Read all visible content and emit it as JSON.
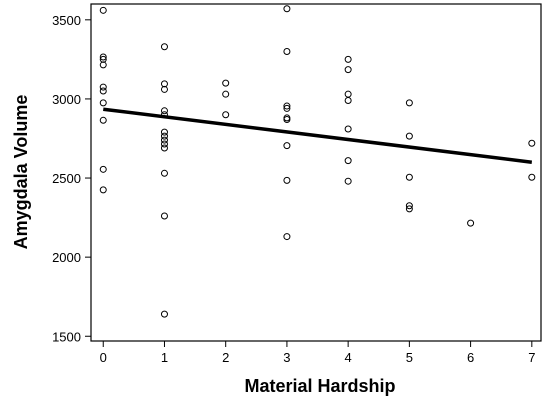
{
  "chart_data": {
    "type": "scatter",
    "title": "",
    "xlabel": "Material Hardship",
    "ylabel": "Amygdala Volume",
    "xlim": [
      -0.2,
      7.15
    ],
    "ylim": [
      1470,
      3600
    ],
    "xticks": [
      0,
      1,
      2,
      3,
      4,
      5,
      6,
      7
    ],
    "yticks": [
      1500,
      2000,
      2500,
      3000,
      3500
    ],
    "grid": false,
    "legend": "none",
    "marker": "open-circle",
    "points": [
      {
        "x": 0,
        "y": 3560
      },
      {
        "x": 0,
        "y": 3265
      },
      {
        "x": 0,
        "y": 3250
      },
      {
        "x": 0,
        "y": 3215
      },
      {
        "x": 0,
        "y": 3075
      },
      {
        "x": 0,
        "y": 3050
      },
      {
        "x": 0,
        "y": 2975
      },
      {
        "x": 0,
        "y": 2865
      },
      {
        "x": 0,
        "y": 2555
      },
      {
        "x": 0,
        "y": 2425
      },
      {
        "x": 1,
        "y": 3330
      },
      {
        "x": 1,
        "y": 3095
      },
      {
        "x": 1,
        "y": 3060
      },
      {
        "x": 1,
        "y": 2925
      },
      {
        "x": 1,
        "y": 2900
      },
      {
        "x": 1,
        "y": 2790
      },
      {
        "x": 1,
        "y": 2765
      },
      {
        "x": 1,
        "y": 2740
      },
      {
        "x": 1,
        "y": 2715
      },
      {
        "x": 1,
        "y": 2690
      },
      {
        "x": 1,
        "y": 2530
      },
      {
        "x": 1,
        "y": 2260
      },
      {
        "x": 1,
        "y": 1640
      },
      {
        "x": 2,
        "y": 3100
      },
      {
        "x": 2,
        "y": 3030
      },
      {
        "x": 2,
        "y": 2900
      },
      {
        "x": 3,
        "y": 3570
      },
      {
        "x": 3,
        "y": 3300
      },
      {
        "x": 3,
        "y": 2955
      },
      {
        "x": 3,
        "y": 2940
      },
      {
        "x": 3,
        "y": 2880
      },
      {
        "x": 3,
        "y": 2870
      },
      {
        "x": 3,
        "y": 2705
      },
      {
        "x": 3,
        "y": 2485
      },
      {
        "x": 3,
        "y": 2130
      },
      {
        "x": 4,
        "y": 3250
      },
      {
        "x": 4,
        "y": 3185
      },
      {
        "x": 4,
        "y": 3030
      },
      {
        "x": 4,
        "y": 2990
      },
      {
        "x": 4,
        "y": 2810
      },
      {
        "x": 4,
        "y": 2610
      },
      {
        "x": 4,
        "y": 2480
      },
      {
        "x": 5,
        "y": 2975
      },
      {
        "x": 5,
        "y": 2765
      },
      {
        "x": 5,
        "y": 2505
      },
      {
        "x": 5,
        "y": 2325
      },
      {
        "x": 5,
        "y": 2305
      },
      {
        "x": 6,
        "y": 2215
      },
      {
        "x": 7,
        "y": 2720
      },
      {
        "x": 7,
        "y": 2505
      }
    ],
    "fit_line": {
      "x": [
        0,
        7
      ],
      "y": [
        2935,
        2600
      ]
    }
  }
}
